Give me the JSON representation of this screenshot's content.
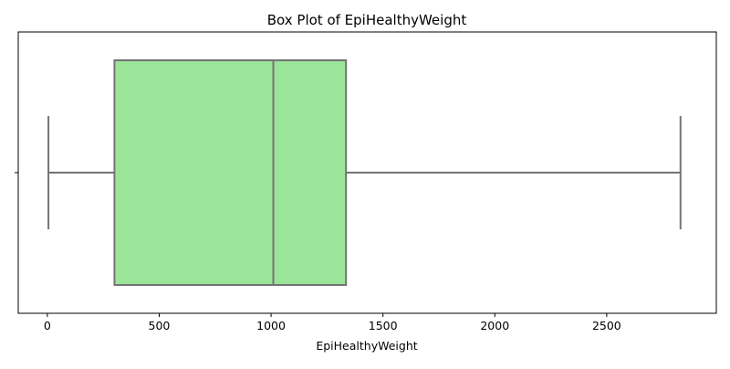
{
  "chart_data": {
    "type": "box",
    "title": "Box Plot of EpiHealthyWeight",
    "xlabel": "EpiHealthyWeight",
    "ylabel": "",
    "xlim": [
      -130,
      2990
    ],
    "xticks": [
      0,
      500,
      1000,
      1500,
      2000,
      2500
    ],
    "xtick_labels": [
      "0",
      "500",
      "1000",
      "1500",
      "2000",
      "2500"
    ],
    "orientation": "horizontal",
    "grid": false,
    "box": {
      "whisker_low": 5,
      "q1": 300,
      "median": 1010,
      "q3": 1335,
      "whisker_high": 2830
    },
    "colors": {
      "box_fill": "#9be59b",
      "line": "#737373"
    }
  }
}
